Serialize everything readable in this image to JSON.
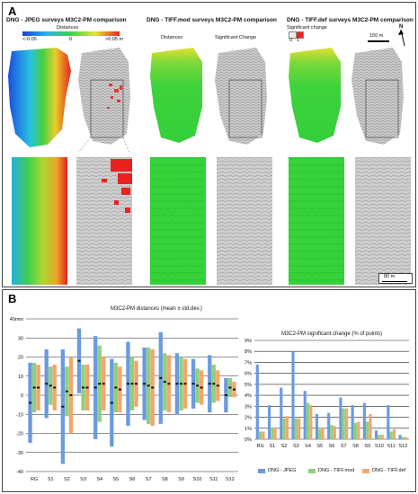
{
  "panel_a": {
    "label": "A",
    "group_titles": [
      "DNG - JPEG surveys M3C2-PM comparison",
      "DNG - TIFF.mod surveys M3C2-PM comparison",
      "DNG - TIFF.def surveys M3C2-PM comparison"
    ],
    "distances_label": "Distances",
    "distance_min": "<-0.05",
    "distance_mid": "0",
    "distance_max": ">0.05 m",
    "tiff_mod_distances": "Distances",
    "tiff_mod_sig": "Significant  Change",
    "sig_change_label": "Significant change",
    "sig_min": "0",
    "sig_max": "1",
    "scale_150": "150 m",
    "north": "N",
    "scale_80": "80 m",
    "colors": {
      "green": "#35d23a",
      "red": "#e8231f",
      "blue": "#2057e0",
      "grey": "#b8b8b8"
    }
  },
  "panel_b": {
    "label": "B",
    "colors": {
      "jpeg": "#6a9be0",
      "tiffmod": "#8fd17a",
      "tiffdef": "#f5a56b"
    }
  },
  "chart_data": [
    {
      "type": "bar",
      "title": "M3C2-PM distances (mean ± std.dev.)",
      "ylabel": "",
      "y_unit": "mm",
      "ylim": [
        -40,
        40
      ],
      "yticks": [
        -40,
        -30,
        -20,
        -10,
        0,
        10,
        20,
        30,
        40
      ],
      "categories": [
        "RG",
        "S1",
        "S2",
        "S3",
        "S4",
        "S5",
        "S6",
        "S7",
        "S8",
        "S9",
        "S10",
        "S11",
        "S12"
      ],
      "series": [
        {
          "name": "DNG - JPEG",
          "mean": [
            -4,
            6,
            -6,
            18,
            4,
            -4,
            6,
            6,
            9,
            6,
            6,
            6,
            0
          ],
          "std": [
            21,
            18,
            30,
            17,
            27,
            23,
            22,
            19,
            24,
            16,
            13,
            15,
            9
          ]
        },
        {
          "name": "DNG - TIFF.mod",
          "mean": [
            4,
            5,
            2,
            4,
            6,
            4,
            6,
            5,
            7,
            6,
            5,
            6,
            4
          ],
          "std": [
            13,
            10,
            13,
            12,
            20,
            13,
            14,
            20,
            15,
            14,
            9,
            10,
            5
          ]
        },
        {
          "name": "DNG - TIFF.def",
          "mean": [
            4,
            4,
            0,
            4,
            6,
            3,
            6,
            4,
            6,
            6,
            4,
            5,
            3
          ],
          "std": [
            12,
            12,
            20,
            12,
            14,
            12,
            12,
            20,
            15,
            13,
            9,
            8,
            4
          ]
        }
      ]
    },
    {
      "type": "bar",
      "title": "M3C2-PM significant change (% of points)",
      "ylim": [
        0,
        9
      ],
      "yticks": [
        "0%",
        "1%",
        "2%",
        "3%",
        "4%",
        "5%",
        "6%",
        "7%",
        "8%",
        "9%"
      ],
      "categories": [
        "RG",
        "S1",
        "S2",
        "S3",
        "S4",
        "S5",
        "S6",
        "S7",
        "S8",
        "S9",
        "S10",
        "S11",
        "S12"
      ],
      "legend": "bottom",
      "series": [
        {
          "name": "DNG - JPEG",
          "values": [
            6.8,
            3.1,
            4.7,
            8.0,
            4.4,
            2.3,
            2.4,
            3.8,
            3.1,
            3.3,
            0.8,
            3.1,
            0.4
          ]
        },
        {
          "name": "DNG - TIFF.mod",
          "values": [
            0.7,
            1.0,
            1.9,
            1.9,
            3.3,
            0.9,
            1.3,
            2.8,
            1.5,
            1.6,
            0.4,
            0.7,
            0.2
          ]
        },
        {
          "name": "DNG - TIFF.def",
          "values": [
            0.7,
            1.0,
            2.1,
            1.9,
            3.1,
            1.0,
            1.2,
            2.8,
            1.6,
            2.3,
            0.4,
            0.9,
            0.2
          ]
        }
      ]
    }
  ]
}
